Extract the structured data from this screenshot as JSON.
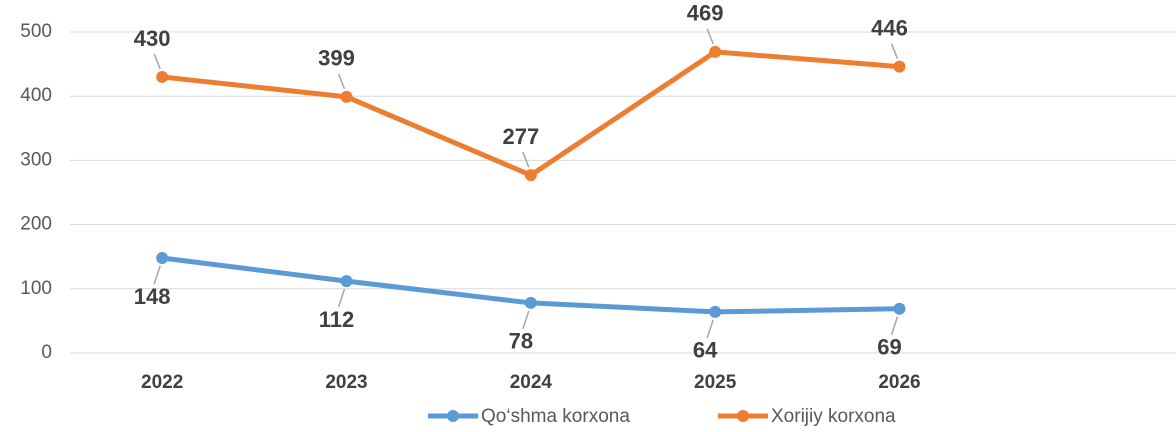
{
  "chart_data": {
    "type": "line",
    "categories": [
      "2022",
      "2023",
      "2024",
      "2025",
      "2026",
      null
    ],
    "series": [
      {
        "name": "Qo‘shma korxona",
        "color": "#5b9bd5",
        "values": [
          148,
          112,
          78,
          64,
          69,
          null
        ]
      },
      {
        "name": "Xorijiy korxona",
        "color": "#ed7d31",
        "values": [
          430,
          399,
          277,
          469,
          446,
          null
        ]
      }
    ],
    "ylim": [
      0,
      500
    ],
    "yticks": [
      0,
      100,
      200,
      300,
      400,
      500
    ],
    "grid": true,
    "legend": "bottom"
  }
}
